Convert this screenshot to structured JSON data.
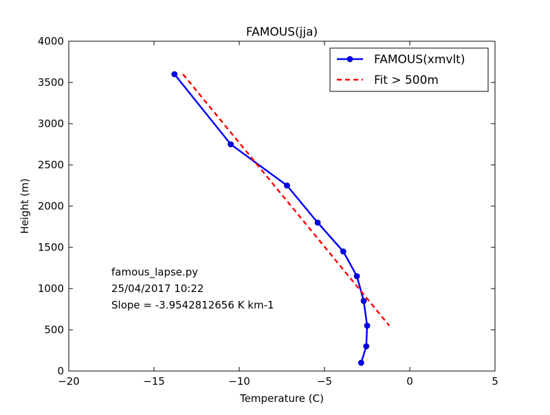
{
  "chart_data": {
    "type": "line",
    "title": "FAMOUS(jja)",
    "xlabel": "Temperature (C)",
    "ylabel": "Height (m)",
    "xlim": [
      -20,
      5
    ],
    "ylim": [
      0,
      4000
    ],
    "xticks": [
      -20,
      -15,
      -10,
      -5,
      0,
      5
    ],
    "xtick_labels": [
      "−20",
      "−15",
      "−10",
      "−5",
      "0",
      "5"
    ],
    "yticks": [
      0,
      500,
      1000,
      1500,
      2000,
      2500,
      3000,
      3500,
      4000
    ],
    "ytick_labels": [
      "0",
      "500",
      "1000",
      "1500",
      "2000",
      "2500",
      "3000",
      "3500",
      "4000"
    ],
    "grid": false,
    "legend_position": "top-right",
    "series": [
      {
        "name": "FAMOUS(xmvlt)",
        "style": "solid-with-markers",
        "color": "#0000ff",
        "x": [
          -13.8,
          -10.5,
          -7.2,
          -5.4,
          -3.9,
          -3.1,
          -2.7,
          -2.5,
          -2.55,
          -2.85
        ],
        "y": [
          3600,
          2750,
          2250,
          1800,
          1450,
          1150,
          850,
          550,
          300,
          100
        ]
      },
      {
        "name": "Fit > 500m",
        "style": "dashed",
        "color": "#ff0000",
        "x": [
          -13.3,
          -1.2
        ],
        "y": [
          3600,
          550
        ]
      }
    ],
    "annotations": [
      "famous_lapse.py",
      "25/04/2017 10:22",
      "Slope = -3.9542812656 K km-1"
    ]
  }
}
